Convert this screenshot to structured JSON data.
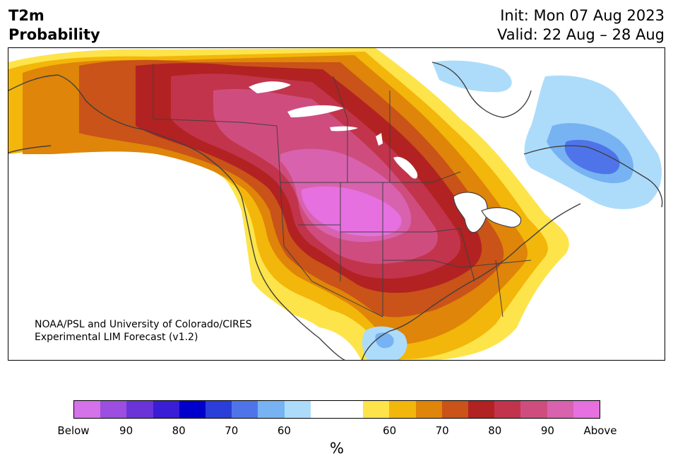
{
  "title": {
    "line1": "T2m",
    "line2": "Probability",
    "init": "Init: Mon 07 Aug 2023",
    "valid": "Valid: 22 Aug – 28 Aug"
  },
  "credit": {
    "line1": "NOAA/PSL and University of Colorado/CIRES",
    "line2": "Experimental LIM Forecast (v1.2)"
  },
  "colorbar": {
    "colors": [
      "#d571e9",
      "#9b4ee0",
      "#6b34d9",
      "#3a1dd6",
      "#0000cc",
      "#2b3ed9",
      "#4f74ea",
      "#77b3f2",
      "#addcfb",
      "#ffffff",
      "#ffffff",
      "#fde44a",
      "#f3b60a",
      "#df8509",
      "#c95318",
      "#b22222",
      "#c2344c",
      "#cf4d7e",
      "#d862ae",
      "#e670df"
    ],
    "ticks": [
      "Below",
      "90",
      "80",
      "70",
      "60",
      "60",
      "70",
      "80",
      "90",
      "Above"
    ],
    "unit": "%"
  },
  "map": {
    "region": "North America",
    "variable": "T2m",
    "colors": {
      "above_60": "#fde44a",
      "above_65": "#f3b60a",
      "above_70": "#df8509",
      "above_75": "#c95318",
      "above_80": "#b22222",
      "above_85": "#c2344c",
      "above_90": "#cf4d7e",
      "above_95": "#d862ae",
      "above_max": "#e670df",
      "below_60": "#addcfb",
      "below_70": "#77b3f2",
      "below_75": "#4f74ea",
      "land_outline": "#404040"
    }
  }
}
